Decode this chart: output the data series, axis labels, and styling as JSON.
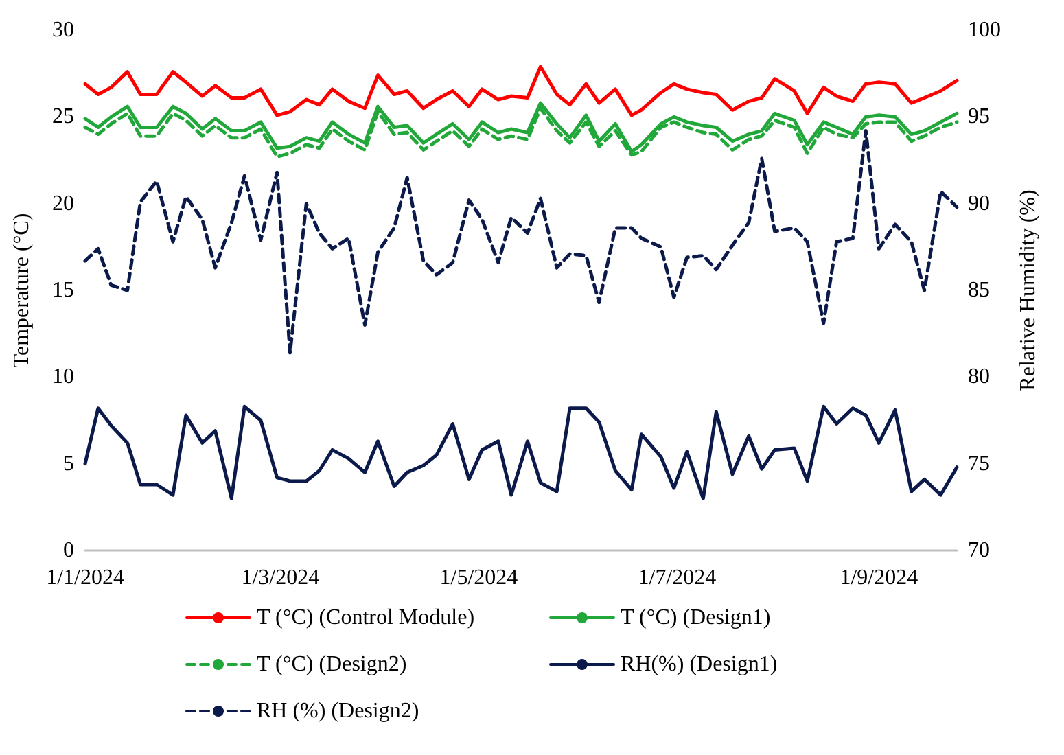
{
  "chart_data": {
    "type": "line",
    "x": [
      "2024-01-01",
      "2024-01-05",
      "2024-01-09",
      "2024-01-14",
      "2024-01-18",
      "2024-01-23",
      "2024-01-28",
      "2024-02-01",
      "2024-02-06",
      "2024-02-10",
      "2024-02-15",
      "2024-02-19",
      "2024-02-24",
      "2024-02-29",
      "2024-03-04",
      "2024-03-09",
      "2024-03-13",
      "2024-03-17",
      "2024-03-22",
      "2024-03-27",
      "2024-03-31",
      "2024-04-05",
      "2024-04-09",
      "2024-04-14",
      "2024-04-18",
      "2024-04-23",
      "2024-04-28",
      "2024-05-02",
      "2024-05-07",
      "2024-05-11",
      "2024-05-16",
      "2024-05-20",
      "2024-05-25",
      "2024-05-29",
      "2024-06-03",
      "2024-06-07",
      "2024-06-12",
      "2024-06-17",
      "2024-06-20",
      "2024-06-26",
      "2024-06-30",
      "2024-07-04",
      "2024-07-09",
      "2024-07-13",
      "2024-07-18",
      "2024-07-23",
      "2024-07-27",
      "2024-07-31",
      "2024-08-06",
      "2024-08-10",
      "2024-08-15",
      "2024-08-19",
      "2024-08-24",
      "2024-08-28",
      "2024-09-01",
      "2024-09-06",
      "2024-09-11",
      "2024-09-15",
      "2024-09-20",
      "2024-09-25"
    ],
    "series": [
      {
        "name": "T (°C) (Control Module)",
        "color": "#ff0000",
        "values": [
          26.9,
          26.3,
          26.7,
          27.6,
          26.3,
          26.3,
          27.6,
          27.0,
          26.2,
          26.8,
          26.1,
          26.1,
          26.6,
          25.1,
          25.3,
          26.0,
          25.7,
          26.6,
          25.9,
          25.5,
          27.4,
          26.3,
          26.5,
          25.5,
          26.0,
          26.5,
          25.6,
          26.6,
          26.0,
          26.2,
          26.1,
          27.9,
          26.3,
          25.7,
          26.9,
          25.8,
          26.6,
          25.1,
          25.4,
          26.4,
          26.9,
          26.6,
          26.4,
          26.3,
          25.4,
          25.9,
          26.1,
          27.2,
          26.5,
          25.2,
          26.7,
          26.2,
          25.9,
          26.9,
          27.0,
          26.9,
          25.8,
          26.1,
          26.5,
          27.1
        ]
      },
      {
        "name": "T (°C) (Design1)",
        "color": "#22a83a",
        "values": [
          24.9,
          24.4,
          25.0,
          25.6,
          24.4,
          24.4,
          25.6,
          25.2,
          24.3,
          24.9,
          24.2,
          24.2,
          24.7,
          23.2,
          23.3,
          23.8,
          23.6,
          24.7,
          24.0,
          23.5,
          25.6,
          24.4,
          24.5,
          23.5,
          24.0,
          24.6,
          23.7,
          24.7,
          24.1,
          24.3,
          24.1,
          25.8,
          24.6,
          23.8,
          25.1,
          23.6,
          24.6,
          23.0,
          23.4,
          24.6,
          25.0,
          24.7,
          24.5,
          24.4,
          23.6,
          24.0,
          24.2,
          25.2,
          24.8,
          23.4,
          24.7,
          24.4,
          24.0,
          25.0,
          25.1,
          25.0,
          24.0,
          24.2,
          24.7,
          25.2
        ]
      },
      {
        "name": "T (°C) (Design2)",
        "color": "#22a83a",
        "line_style": "dashed",
        "values": [
          24.4,
          24.0,
          24.6,
          25.2,
          23.9,
          23.9,
          25.2,
          24.8,
          23.9,
          24.5,
          23.8,
          23.8,
          24.3,
          22.7,
          22.9,
          23.4,
          23.2,
          24.3,
          23.6,
          23.1,
          25.3,
          24.0,
          24.1,
          23.1,
          23.6,
          24.2,
          23.3,
          24.3,
          23.7,
          23.9,
          23.7,
          25.5,
          24.2,
          23.5,
          24.7,
          23.3,
          24.2,
          22.8,
          23.0,
          24.4,
          24.7,
          24.4,
          24.1,
          24.0,
          23.1,
          23.7,
          23.9,
          24.8,
          24.4,
          22.9,
          24.4,
          24.0,
          23.8,
          24.6,
          24.7,
          24.7,
          23.6,
          23.9,
          24.4,
          24.7
        ]
      },
      {
        "name": "RH(%) (Design1)",
        "color": "#0b1a4a",
        "axis": "y2",
        "values": [
          75.0,
          78.2,
          77.2,
          76.2,
          73.8,
          73.8,
          73.2,
          77.8,
          76.2,
          76.9,
          73.0,
          78.3,
          77.5,
          74.2,
          74.0,
          74.0,
          74.6,
          75.8,
          75.3,
          74.5,
          76.3,
          73.7,
          74.5,
          74.9,
          75.5,
          77.3,
          74.1,
          75.8,
          76.3,
          73.2,
          76.3,
          73.9,
          73.4,
          78.2,
          78.2,
          77.4,
          74.6,
          73.5,
          76.7,
          75.4,
          73.6,
          75.7,
          73.0,
          78.0,
          74.4,
          76.6,
          74.7,
          75.8,
          75.9,
          74.0,
          78.3,
          77.3,
          78.2,
          77.8,
          76.2,
          78.1,
          73.4,
          74.1,
          73.2,
          74.8
        ]
      },
      {
        "name": "RH (%) (Design2)",
        "color": "#0b1a4a",
        "axis": "y2",
        "line_style": "dashed",
        "values": [
          86.7,
          87.4,
          85.3,
          85.0,
          90.1,
          91.3,
          87.8,
          90.4,
          89.1,
          86.3,
          88.9,
          91.6,
          87.9,
          91.8,
          81.4,
          90.0,
          88.3,
          87.4,
          88.0,
          83.0,
          87.2,
          88.6,
          91.5,
          86.7,
          85.9,
          86.6,
          90.2,
          89.1,
          86.6,
          89.2,
          88.3,
          90.3,
          86.3,
          87.1,
          87.0,
          84.3,
          88.6,
          88.6,
          88.0,
          87.5,
          84.6,
          86.9,
          87.0,
          86.2,
          87.6,
          88.9,
          92.6,
          88.4,
          88.6,
          87.8,
          83.1,
          87.8,
          88.0,
          94.2,
          87.4,
          88.8,
          87.8,
          85.0,
          90.7,
          89.8
        ]
      }
    ],
    "xlim": [
      "2024-01-01",
      "2024-09-25"
    ],
    "xticks": [
      {
        "value": "2024-01-01",
        "label": "1/1/2024"
      },
      {
        "value": "2024-03-01",
        "label": "1/3/2024"
      },
      {
        "value": "2024-05-01",
        "label": "1/5/2024"
      },
      {
        "value": "2024-07-01",
        "label": "1/7/2024"
      },
      {
        "value": "2024-09-01",
        "label": "1/9/2024"
      }
    ],
    "ylabel": "Temperature (°C)",
    "y2label": "Relative Humidity (%)",
    "ylim": [
      0,
      30
    ],
    "yticks": [
      0,
      5,
      10,
      15,
      20,
      25,
      30
    ],
    "y2lim": [
      70,
      100
    ],
    "y2ticks": [
      70,
      75,
      80,
      85,
      90,
      95,
      100
    ],
    "grid": false,
    "legend": "bottom",
    "marker": "none",
    "line_style": "solid"
  }
}
